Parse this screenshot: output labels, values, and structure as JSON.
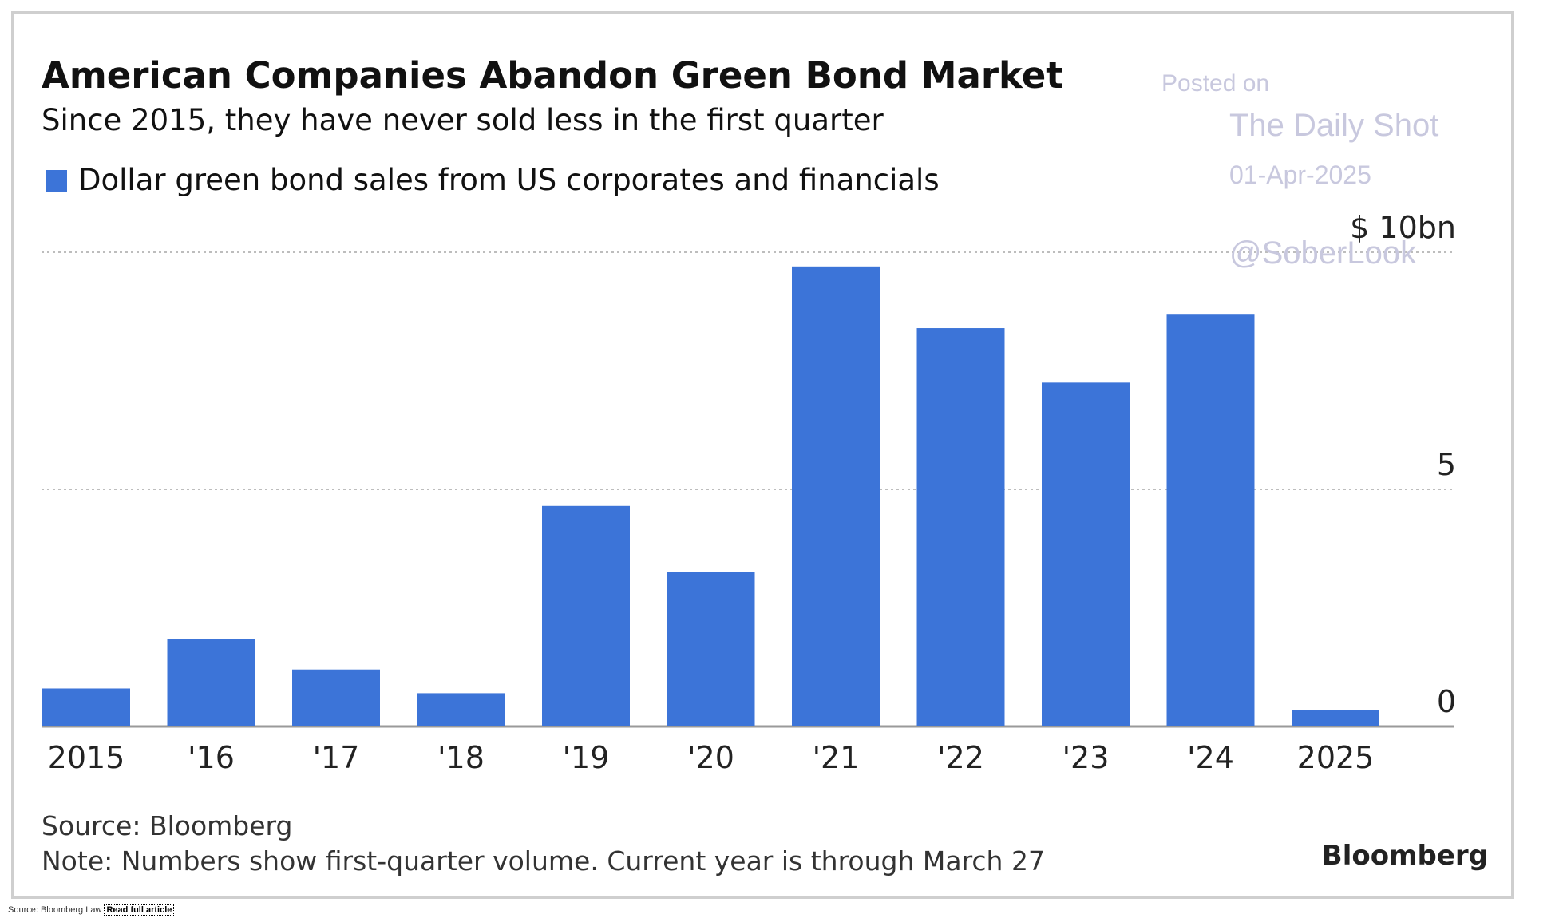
{
  "chart_data": {
    "type": "bar",
    "title": "American Companies Abandon Green Bond Market",
    "subtitle": "Since 2015, they have never sold less in the first quarter",
    "legend": [
      "Dollar green bond sales from US corporates and financials"
    ],
    "categories": [
      "2015",
      "'16",
      "'17",
      "'18",
      "'19",
      "'20",
      "'21",
      "'22",
      "'23",
      "'24",
      "2025"
    ],
    "series": [
      {
        "name": "Dollar green bond sales from US corporates and financials",
        "values": [
          0.8,
          1.85,
          1.2,
          0.7,
          4.65,
          3.25,
          9.7,
          8.4,
          7.25,
          8.7,
          0.35
        ]
      }
    ],
    "ylim": [
      0,
      10
    ],
    "yticks": [
      0,
      5,
      10
    ],
    "ytick_labels": [
      "0",
      "5",
      "$ 10bn"
    ],
    "grid": true,
    "y_axis_side": "right",
    "legend_position": "top-left",
    "bar_color": "#3c74d8"
  },
  "footer": {
    "source": "Source: Bloomberg",
    "note": "Note: Numbers show first-quarter volume. Current year is through March 27",
    "brand": "Bloomberg"
  },
  "watermark": {
    "line1": "Posted on",
    "line2": "The Daily Shot",
    "line3": "01-Apr-2025",
    "line4": "@SoberLook"
  },
  "credit": {
    "source": "Source: Bloomberg Law",
    "link": "Read full article"
  }
}
